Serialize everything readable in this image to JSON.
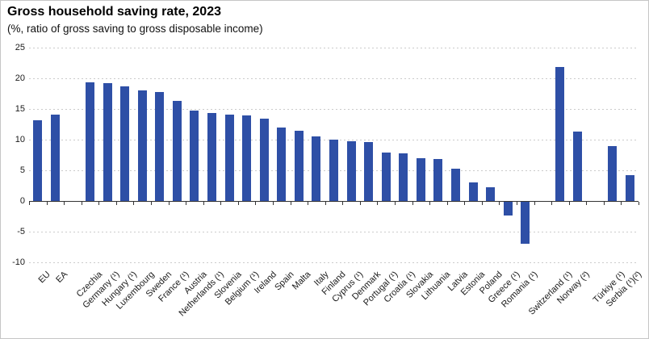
{
  "header": {
    "title": "Gross household saving rate, 2023",
    "subtitle": "(%, ratio of gross saving to gross disposable income)"
  },
  "chart_data": {
    "type": "bar",
    "title": "Gross household saving rate, 2023",
    "subtitle": "(%, ratio of gross saving to gross disposable income)",
    "unit": "% of gross disposable income",
    "ylim": [
      -10,
      25
    ],
    "yticks": [
      25,
      20,
      15,
      10,
      5,
      0,
      -5,
      -10
    ],
    "grid": "horizontal-dashed",
    "legend": "none",
    "bar_color": "#2e4fa6",
    "axis_color": "#333333",
    "gridline_color": "#cbcbcb",
    "categories": [
      "EU",
      "EA",
      "Czechia",
      "Germany (¹)",
      "Hungary (¹)",
      "Luxembourg",
      "Sweden",
      "France (¹)",
      "Austria",
      "Netherlands (¹)",
      "Slovenia",
      "Belgium (¹)",
      "Ireland",
      "Spain",
      "Malta",
      "Italy",
      "Finland",
      "Cyprus (¹)",
      "Denmark",
      "Portugal (¹)",
      "Croatia (¹)",
      "Slovakia",
      "Lithuania",
      "Latvia",
      "Estonia",
      "Poland",
      "Greece (¹)",
      "Romania (¹)",
      "Switzerland (¹)",
      "Norway (²)",
      "Türkiye (¹)",
      "Serbia (¹)(²)"
    ],
    "values": [
      13.1,
      14.1,
      19.3,
      19.2,
      18.7,
      18.0,
      17.7,
      16.3,
      14.8,
      14.4,
      14.1,
      13.9,
      13.4,
      12.0,
      11.4,
      10.5,
      10.0,
      9.8,
      9.6,
      7.9,
      7.8,
      7.0,
      6.8,
      5.2,
      3.0,
      2.3,
      -2.2,
      -6.9,
      21.8,
      11.3,
      9.0,
      4.2
    ],
    "slots": [
      0,
      1,
      3,
      4,
      5,
      6,
      7,
      8,
      9,
      10,
      11,
      12,
      13,
      14,
      15,
      16,
      17,
      18,
      19,
      20,
      21,
      22,
      23,
      24,
      25,
      26,
      27,
      28,
      30,
      31,
      33,
      34
    ],
    "total_slots": 35,
    "gap_slots": [
      2,
      29,
      32
    ]
  }
}
